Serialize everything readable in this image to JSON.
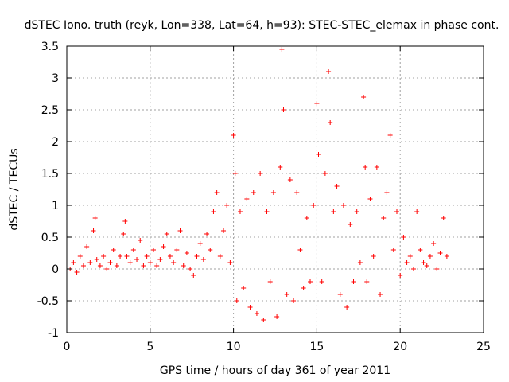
{
  "chart_data": {
    "type": "scatter",
    "title": "dSTEC Iono. truth (reyk, Lon=338, Lat=64, h=93): STEC-STEC_elemax in phase cont.",
    "xlabel": "GPS time / hours of day 361 of year 2011",
    "ylabel": "dSTEC  / TECUs",
    "xlim": [
      0,
      25
    ],
    "ylim": [
      -1,
      3.5
    ],
    "xticks": [
      "0",
      "5",
      "10",
      "15",
      "20",
      "25"
    ],
    "yticks": [
      "-1",
      "-0.5",
      "0",
      "0.5",
      "1",
      "1.5",
      "2",
      "2.5",
      "3",
      "3.5"
    ],
    "grid": true,
    "marker": "plus",
    "color": "#ff0000",
    "series": [
      {
        "x": [
          0.2,
          0.4,
          0.6,
          0.8,
          1.0,
          1.2,
          1.4,
          1.6,
          1.7,
          1.8,
          2.0,
          2.2,
          2.4,
          2.6,
          2.8,
          3.0,
          3.2,
          3.4,
          3.5,
          3.6,
          3.8,
          4.0,
          4.2,
          4.4,
          4.6,
          4.8,
          5.0,
          5.2,
          5.4,
          5.6,
          5.8,
          6.0,
          6.2,
          6.4,
          6.6,
          6.8,
          7.0,
          7.2,
          7.4,
          7.6,
          7.8,
          8.0,
          8.2,
          8.4,
          8.6,
          8.8,
          9.0,
          9.2,
          9.4,
          9.6,
          9.8,
          10.0,
          10.1,
          10.2,
          10.4,
          10.6,
          10.8,
          11.0,
          11.2,
          11.4,
          11.6,
          11.8,
          12.0,
          12.2,
          12.4,
          12.6,
          12.8,
          12.9,
          13.0,
          13.2,
          13.4,
          13.6,
          13.8,
          14.0,
          14.2,
          14.4,
          14.6,
          14.8,
          15.0,
          15.1,
          15.3,
          15.5,
          15.7,
          15.8,
          16.0,
          16.2,
          16.4,
          16.6,
          16.8,
          17.0,
          17.2,
          17.4,
          17.6,
          17.8,
          17.9,
          18.0,
          18.2,
          18.4,
          18.6,
          18.8,
          19.0,
          19.2,
          19.4,
          19.6,
          19.8,
          20.0,
          20.2,
          20.4,
          20.6,
          20.8,
          21.0,
          21.2,
          21.4,
          21.6,
          21.8,
          22.0,
          22.2,
          22.4,
          22.6,
          22.8
        ],
        "y": [
          0.0,
          0.1,
          -0.05,
          0.2,
          0.05,
          0.35,
          0.1,
          0.6,
          0.8,
          0.15,
          0.05,
          0.2,
          0.0,
          0.1,
          0.3,
          0.05,
          0.2,
          0.55,
          0.75,
          0.2,
          0.1,
          0.3,
          0.15,
          0.45,
          0.05,
          0.2,
          0.1,
          0.3,
          0.05,
          0.15,
          0.35,
          0.55,
          0.2,
          0.1,
          0.3,
          0.6,
          0.05,
          0.25,
          0.0,
          -0.1,
          0.2,
          0.4,
          0.15,
          0.55,
          0.3,
          0.9,
          1.2,
          0.2,
          0.6,
          1.0,
          0.1,
          2.1,
          1.5,
          -0.5,
          0.9,
          -0.3,
          1.1,
          -0.6,
          1.2,
          -0.7,
          1.5,
          -0.8,
          0.9,
          -0.2,
          1.2,
          -0.75,
          1.6,
          3.45,
          2.5,
          -0.4,
          1.4,
          -0.5,
          1.2,
          0.3,
          -0.3,
          0.8,
          -0.2,
          1.0,
          2.6,
          1.8,
          -0.2,
          1.5,
          3.1,
          2.3,
          0.9,
          1.3,
          -0.4,
          1.0,
          -0.6,
          0.7,
          -0.2,
          0.9,
          0.1,
          2.7,
          1.6,
          -0.2,
          1.1,
          0.2,
          1.6,
          -0.4,
          0.8,
          1.2,
          2.1,
          0.3,
          0.9,
          -0.1,
          0.5,
          0.1,
          0.2,
          0.0,
          0.9,
          0.3,
          0.1,
          0.05,
          0.2,
          0.4,
          0.0,
          0.25,
          0.8,
          0.2
        ]
      }
    ]
  }
}
